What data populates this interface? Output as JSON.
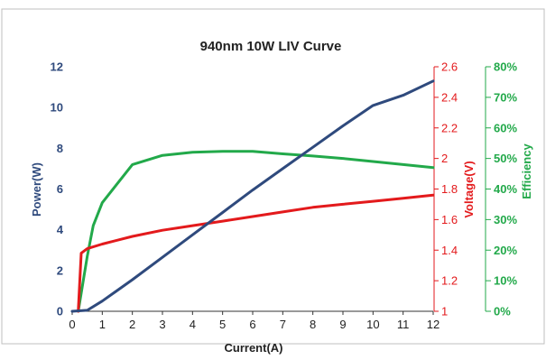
{
  "colors": {
    "power": "#2f4a7d",
    "voltage": "#e31a1c",
    "efficiency": "#22a94a",
    "axis_left": "#2f4a7d",
    "axis_right_v": "#e31a1c",
    "axis_right_e": "#22a94a",
    "text": "#222222",
    "frame": "#bfbfbf"
  },
  "chart_data": {
    "type": "line",
    "title": "940nm 10W LIV Curve",
    "xlabel": "Current(A)",
    "ylabel": "Power(W)",
    "y2label": "Voltage(V)",
    "y3label": "Efficiency",
    "xlim": [
      0,
      12
    ],
    "ylim": [
      0,
      12
    ],
    "y2lim": [
      1,
      2.6
    ],
    "y3lim": [
      0,
      0.8
    ],
    "x_ticks": [
      "0",
      "1",
      "2",
      "3",
      "4",
      "5",
      "6",
      "7",
      "8",
      "9",
      "10",
      "11",
      "12"
    ],
    "y_ticks": [
      "0",
      "2",
      "4",
      "6",
      "8",
      "10",
      "12"
    ],
    "y2_ticks": [
      "1",
      "1.2",
      "1.4",
      "1.6",
      "1.8",
      "2",
      "2.2",
      "2.4",
      "2.6"
    ],
    "y3_ticks": [
      "0%",
      "10%",
      "20%",
      "30%",
      "40%",
      "50%",
      "60%",
      "70%",
      "80%"
    ],
    "grid": false,
    "series": [
      {
        "axis": "power",
        "x": [
          0,
          0.5,
          1,
          2,
          3,
          4,
          5,
          6,
          7,
          8,
          9,
          10,
          11,
          12
        ],
        "values": [
          0,
          0.05,
          0.5,
          1.55,
          2.65,
          3.75,
          4.85,
          5.95,
          7.0,
          8.05,
          9.1,
          10.1,
          10.6,
          11.3
        ]
      },
      {
        "axis": "voltage",
        "x": [
          0.2,
          0.3,
          0.5,
          1,
          2,
          3,
          4,
          5,
          6,
          7,
          8,
          9,
          10,
          11,
          12
        ],
        "values": [
          1,
          1.38,
          1.41,
          1.44,
          1.49,
          1.53,
          1.56,
          1.59,
          1.62,
          1.65,
          1.68,
          1.7,
          1.72,
          1.74,
          1.76
        ]
      },
      {
        "axis": "efficiency",
        "x": [
          0.2,
          0.5,
          0.7,
          1,
          2,
          3,
          4,
          5,
          6,
          7,
          8,
          9,
          10,
          11,
          12
        ],
        "values": [
          0,
          0.18,
          0.28,
          0.355,
          0.48,
          0.51,
          0.52,
          0.523,
          0.523,
          0.515,
          0.508,
          0.5,
          0.49,
          0.48,
          0.47
        ]
      }
    ]
  }
}
